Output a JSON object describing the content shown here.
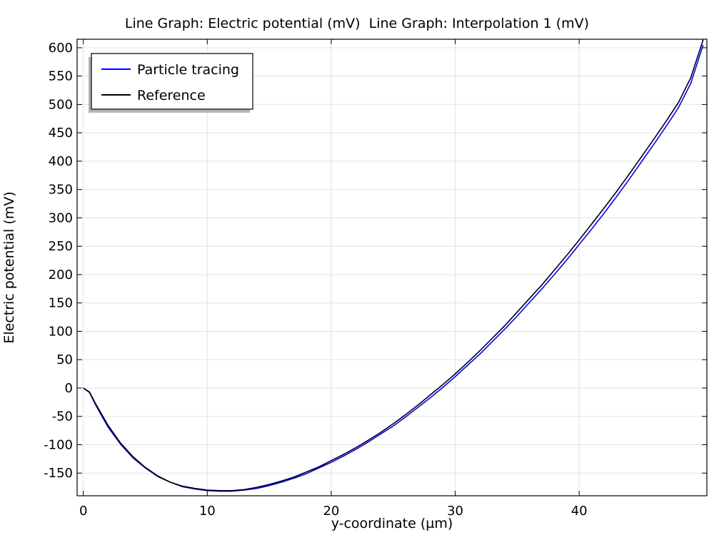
{
  "chart_data": {
    "type": "line",
    "title": "Line Graph: Electric potential (mV)  Line Graph: Interpolation 1 (mV)",
    "xlabel": "y-coordinate (µm)",
    "ylabel": "Electric potential (mV)",
    "xlim": [
      -0.5,
      50.3
    ],
    "ylim": [
      -190,
      615
    ],
    "xticks": [
      0,
      10,
      20,
      30,
      40
    ],
    "xtick_labels": [
      "0",
      "10",
      "20",
      "30",
      "40"
    ],
    "yticks": [
      -150,
      -100,
      -50,
      0,
      50,
      100,
      150,
      200,
      250,
      300,
      350,
      400,
      450,
      500,
      550,
      600
    ],
    "ytick_labels": [
      "-150",
      "-100",
      "-50",
      "0",
      "50",
      "100",
      "150",
      "200",
      "250",
      "300",
      "350",
      "400",
      "450",
      "500",
      "550",
      "600"
    ],
    "grid": true,
    "legend_position": "top-left",
    "series": [
      {
        "name": "Particle tracing",
        "color": "#0000ff",
        "x": [
          0,
          0.5,
          1,
          2,
          3,
          4,
          5,
          6,
          7,
          8,
          9,
          10,
          11,
          11.7,
          12,
          13,
          14,
          15,
          16,
          17,
          18,
          19,
          20,
          21,
          22,
          23,
          24,
          25,
          26,
          27,
          28,
          29,
          30,
          31,
          32,
          33,
          34,
          35,
          36,
          37,
          38,
          39,
          40,
          41,
          42,
          43,
          44,
          45,
          46,
          47,
          48,
          49,
          50
        ],
        "y": [
          0,
          -8,
          -30,
          -69,
          -99,
          -123,
          -141,
          -156,
          -166,
          -174,
          -178,
          -181,
          -182,
          -182,
          -182,
          -180,
          -177,
          -172,
          -166,
          -159,
          -151,
          -141,
          -131,
          -120,
          -108,
          -95,
          -81,
          -67,
          -51,
          -34,
          -17,
          1,
          20,
          40,
          60,
          82,
          104,
          127,
          151,
          175,
          200,
          226,
          253,
          280,
          308,
          337,
          367,
          398,
          429,
          461,
          494,
          537,
          605
        ]
      },
      {
        "name": "Reference",
        "color": "#000000",
        "x": [
          0,
          0.5,
          1,
          2,
          3,
          4,
          5,
          6,
          7,
          8,
          9,
          10,
          11,
          11.5,
          12,
          13,
          14,
          15,
          16,
          17,
          18,
          19,
          20,
          21,
          22,
          23,
          24,
          25,
          26,
          27,
          28,
          29,
          30,
          31,
          32,
          33,
          34,
          35,
          36,
          37,
          38,
          39,
          40,
          41,
          42,
          43,
          44,
          45,
          46,
          47,
          48,
          49,
          50
        ],
        "y": [
          0,
          -7,
          -28,
          -66,
          -97,
          -121,
          -140,
          -155,
          -166,
          -173,
          -177,
          -180,
          -181,
          -181,
          -181,
          -179,
          -175,
          -170,
          -164,
          -157,
          -148,
          -139,
          -128,
          -117,
          -105,
          -92,
          -78,
          -63,
          -47,
          -30,
          -12,
          6,
          25,
          45,
          66,
          88,
          110,
          134,
          158,
          182,
          208,
          234,
          261,
          289,
          317,
          346,
          376,
          407,
          438,
          470,
          503,
          547,
          614
        ]
      }
    ]
  }
}
